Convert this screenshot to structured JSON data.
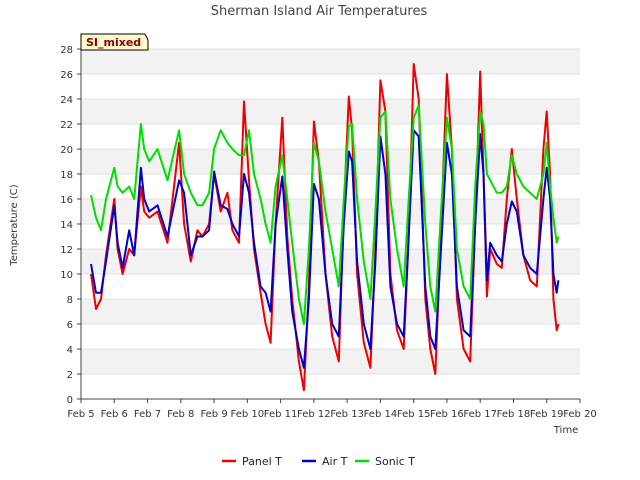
{
  "chart_data": {
    "type": "line",
    "title": "Sherman Island Air Temperatures",
    "xlabel": "Time",
    "ylabel": "Temperature (C)",
    "badge": "SI_mixed",
    "x_ticks": [
      "Feb 5",
      "Feb 6",
      "Feb 7",
      "Feb 8",
      "Feb 9",
      "Feb 10",
      "Feb 11",
      "Feb 12",
      "Feb 13",
      "Feb 14",
      "Feb 15",
      "Feb 16",
      "Feb 17",
      "Feb 18",
      "Feb 19",
      "Feb 20"
    ],
    "xlim": [
      5,
      20
    ],
    "ylim": [
      0,
      28
    ],
    "y_ticks": [
      0,
      2,
      4,
      6,
      8,
      10,
      12,
      14,
      16,
      18,
      20,
      22,
      24,
      26,
      28
    ],
    "grid": true,
    "legend_position": "bottom-center",
    "series": [
      {
        "name": "Panel T",
        "color": "#ee0000",
        "points": [
          [
            5.3,
            10.0
          ],
          [
            5.45,
            7.2
          ],
          [
            5.6,
            8.0
          ],
          [
            5.75,
            11.5
          ],
          [
            6.0,
            16.0
          ],
          [
            6.1,
            12.0
          ],
          [
            6.25,
            10.0
          ],
          [
            6.45,
            12.0
          ],
          [
            6.6,
            11.5
          ],
          [
            6.8,
            17.0
          ],
          [
            6.9,
            15.0
          ],
          [
            7.05,
            14.5
          ],
          [
            7.3,
            15.0
          ],
          [
            7.6,
            12.5
          ],
          [
            7.95,
            20.5
          ],
          [
            8.1,
            14.0
          ],
          [
            8.3,
            11.0
          ],
          [
            8.5,
            13.5
          ],
          [
            8.65,
            13.0
          ],
          [
            8.85,
            14.0
          ],
          [
            9.0,
            18.0
          ],
          [
            9.2,
            15.0
          ],
          [
            9.4,
            16.5
          ],
          [
            9.55,
            13.5
          ],
          [
            9.75,
            12.5
          ],
          [
            9.9,
            23.8
          ],
          [
            10.05,
            17.5
          ],
          [
            10.2,
            12.0
          ],
          [
            10.4,
            8.5
          ],
          [
            10.55,
            6.0
          ],
          [
            10.7,
            4.5
          ],
          [
            10.85,
            14.0
          ],
          [
            11.05,
            22.5
          ],
          [
            11.2,
            13.0
          ],
          [
            11.35,
            8.0
          ],
          [
            11.55,
            3.0
          ],
          [
            11.7,
            0.7
          ],
          [
            11.85,
            9.0
          ],
          [
            12.0,
            22.2
          ],
          [
            12.15,
            19.0
          ],
          [
            12.35,
            10.0
          ],
          [
            12.55,
            5.0
          ],
          [
            12.75,
            3.0
          ],
          [
            12.9,
            15.0
          ],
          [
            13.05,
            24.2
          ],
          [
            13.15,
            21.5
          ],
          [
            13.3,
            10.0
          ],
          [
            13.5,
            4.5
          ],
          [
            13.7,
            2.5
          ],
          [
            13.85,
            12.0
          ],
          [
            14.0,
            25.5
          ],
          [
            14.15,
            23.0
          ],
          [
            14.3,
            10.0
          ],
          [
            14.5,
            5.5
          ],
          [
            14.7,
            4.0
          ],
          [
            14.85,
            13.0
          ],
          [
            15.0,
            26.8
          ],
          [
            15.15,
            24.0
          ],
          [
            15.35,
            8.0
          ],
          [
            15.5,
            4.0
          ],
          [
            15.65,
            2.0
          ],
          [
            15.8,
            12.0
          ],
          [
            16.0,
            26.0
          ],
          [
            16.15,
            20.0
          ],
          [
            16.3,
            8.0
          ],
          [
            16.5,
            4.0
          ],
          [
            16.7,
            3.0
          ],
          [
            16.85,
            14.0
          ],
          [
            17.0,
            26.2
          ],
          [
            17.1,
            18.0
          ],
          [
            17.2,
            8.2
          ],
          [
            17.3,
            12.0
          ],
          [
            17.5,
            10.8
          ],
          [
            17.65,
            10.5
          ],
          [
            17.8,
            16.0
          ],
          [
            17.95,
            20.0
          ],
          [
            18.1,
            16.0
          ],
          [
            18.3,
            11.5
          ],
          [
            18.5,
            9.5
          ],
          [
            18.7,
            9.0
          ],
          [
            18.9,
            20.0
          ],
          [
            19.0,
            23.0
          ],
          [
            19.1,
            18.0
          ],
          [
            19.2,
            8.0
          ],
          [
            19.3,
            5.5
          ],
          [
            19.35,
            6.0
          ]
        ]
      },
      {
        "name": "Air T",
        "color": "#0000cc",
        "points": [
          [
            5.3,
            10.8
          ],
          [
            5.45,
            8.5
          ],
          [
            5.6,
            8.5
          ],
          [
            5.75,
            11.0
          ],
          [
            6.0,
            15.5
          ],
          [
            6.1,
            12.5
          ],
          [
            6.25,
            10.5
          ],
          [
            6.45,
            13.5
          ],
          [
            6.6,
            11.5
          ],
          [
            6.8,
            18.5
          ],
          [
            6.9,
            16.0
          ],
          [
            7.05,
            15.0
          ],
          [
            7.3,
            15.5
          ],
          [
            7.6,
            13.0
          ],
          [
            7.95,
            17.5
          ],
          [
            8.1,
            16.5
          ],
          [
            8.3,
            11.5
          ],
          [
            8.5,
            13.0
          ],
          [
            8.65,
            13.0
          ],
          [
            8.85,
            13.5
          ],
          [
            9.0,
            18.2
          ],
          [
            9.2,
            15.5
          ],
          [
            9.4,
            15.2
          ],
          [
            9.55,
            14.0
          ],
          [
            9.75,
            13.0
          ],
          [
            9.9,
            18.0
          ],
          [
            10.05,
            16.5
          ],
          [
            10.2,
            12.5
          ],
          [
            10.4,
            9.0
          ],
          [
            10.55,
            8.5
          ],
          [
            10.7,
            7.0
          ],
          [
            10.85,
            14.0
          ],
          [
            11.05,
            17.8
          ],
          [
            11.2,
            12.0
          ],
          [
            11.35,
            7.0
          ],
          [
            11.55,
            4.0
          ],
          [
            11.7,
            2.5
          ],
          [
            11.85,
            8.0
          ],
          [
            12.0,
            17.2
          ],
          [
            12.15,
            16.0
          ],
          [
            12.35,
            10.0
          ],
          [
            12.55,
            6.0
          ],
          [
            12.75,
            5.0
          ],
          [
            12.9,
            14.0
          ],
          [
            13.05,
            19.8
          ],
          [
            13.15,
            19.0
          ],
          [
            13.3,
            11.0
          ],
          [
            13.5,
            6.0
          ],
          [
            13.7,
            4.0
          ],
          [
            13.85,
            11.0
          ],
          [
            14.0,
            21.0
          ],
          [
            14.15,
            18.0
          ],
          [
            14.3,
            9.0
          ],
          [
            14.5,
            6.0
          ],
          [
            14.7,
            5.0
          ],
          [
            14.85,
            13.0
          ],
          [
            15.0,
            21.5
          ],
          [
            15.15,
            21.0
          ],
          [
            15.35,
            9.0
          ],
          [
            15.5,
            5.0
          ],
          [
            15.65,
            4.0
          ],
          [
            15.8,
            11.0
          ],
          [
            16.0,
            20.5
          ],
          [
            16.15,
            18.0
          ],
          [
            16.3,
            9.0
          ],
          [
            16.5,
            5.5
          ],
          [
            16.7,
            5.0
          ],
          [
            16.85,
            14.0
          ],
          [
            17.0,
            21.2
          ],
          [
            17.1,
            18.0
          ],
          [
            17.2,
            9.5
          ],
          [
            17.3,
            12.5
          ],
          [
            17.5,
            11.5
          ],
          [
            17.65,
            11.0
          ],
          [
            17.8,
            14.0
          ],
          [
            17.95,
            15.8
          ],
          [
            18.1,
            15.0
          ],
          [
            18.3,
            11.5
          ],
          [
            18.5,
            10.5
          ],
          [
            18.7,
            10.0
          ],
          [
            18.9,
            16.0
          ],
          [
            19.0,
            18.5
          ],
          [
            19.1,
            16.0
          ],
          [
            19.2,
            10.0
          ],
          [
            19.3,
            8.5
          ],
          [
            19.35,
            9.5
          ]
        ]
      },
      {
        "name": "Sonic T",
        "color": "#00dd00",
        "points": [
          [
            5.3,
            16.3
          ],
          [
            5.45,
            14.5
          ],
          [
            5.6,
            13.5
          ],
          [
            5.75,
            16.0
          ],
          [
            6.0,
            18.5
          ],
          [
            6.1,
            17.0
          ],
          [
            6.25,
            16.5
          ],
          [
            6.45,
            17.0
          ],
          [
            6.6,
            16.0
          ],
          [
            6.8,
            22.0
          ],
          [
            6.9,
            20.0
          ],
          [
            7.05,
            19.0
          ],
          [
            7.3,
            20.0
          ],
          [
            7.6,
            17.5
          ],
          [
            7.95,
            21.5
          ],
          [
            8.1,
            18.0
          ],
          [
            8.3,
            16.5
          ],
          [
            8.5,
            15.5
          ],
          [
            8.65,
            15.5
          ],
          [
            8.85,
            16.5
          ],
          [
            9.0,
            20.0
          ],
          [
            9.2,
            21.5
          ],
          [
            9.4,
            20.5
          ],
          [
            9.55,
            20.0
          ],
          [
            9.75,
            19.5
          ],
          [
            9.9,
            19.5
          ],
          [
            10.05,
            21.5
          ],
          [
            10.2,
            18.0
          ],
          [
            10.4,
            16.0
          ],
          [
            10.55,
            14.0
          ],
          [
            10.7,
            12.5
          ],
          [
            10.85,
            17.0
          ],
          [
            11.05,
            19.5
          ],
          [
            11.2,
            16.0
          ],
          [
            11.35,
            12.5
          ],
          [
            11.55,
            8.0
          ],
          [
            11.7,
            6.0
          ],
          [
            11.85,
            12.0
          ],
          [
            12.0,
            20.5
          ],
          [
            12.15,
            19.0
          ],
          [
            12.35,
            15.0
          ],
          [
            12.55,
            12.0
          ],
          [
            12.75,
            9.0
          ],
          [
            12.9,
            16.0
          ],
          [
            13.05,
            21.8
          ],
          [
            13.15,
            22.0
          ],
          [
            13.3,
            16.0
          ],
          [
            13.5,
            11.0
          ],
          [
            13.7,
            8.0
          ],
          [
            13.85,
            15.0
          ],
          [
            14.0,
            22.5
          ],
          [
            14.15,
            23.0
          ],
          [
            14.3,
            16.0
          ],
          [
            14.5,
            12.0
          ],
          [
            14.7,
            9.0
          ],
          [
            14.85,
            16.0
          ],
          [
            15.0,
            22.5
          ],
          [
            15.15,
            23.5
          ],
          [
            15.35,
            14.0
          ],
          [
            15.5,
            9.0
          ],
          [
            15.65,
            7.0
          ],
          [
            15.8,
            14.0
          ],
          [
            16.0,
            22.5
          ],
          [
            16.15,
            20.0
          ],
          [
            16.3,
            12.0
          ],
          [
            16.5,
            9.0
          ],
          [
            16.7,
            8.0
          ],
          [
            16.85,
            17.0
          ],
          [
            17.0,
            23.0
          ],
          [
            17.1,
            22.0
          ],
          [
            17.2,
            18.0
          ],
          [
            17.3,
            17.5
          ],
          [
            17.5,
            16.5
          ],
          [
            17.65,
            16.5
          ],
          [
            17.8,
            17.0
          ],
          [
            17.95,
            19.5
          ],
          [
            18.1,
            18.0
          ],
          [
            18.3,
            17.0
          ],
          [
            18.5,
            16.5
          ],
          [
            18.7,
            16.0
          ],
          [
            18.9,
            18.0
          ],
          [
            19.0,
            20.5
          ],
          [
            19.1,
            17.0
          ],
          [
            19.2,
            14.5
          ],
          [
            19.3,
            12.5
          ],
          [
            19.35,
            13.0
          ]
        ]
      }
    ]
  }
}
